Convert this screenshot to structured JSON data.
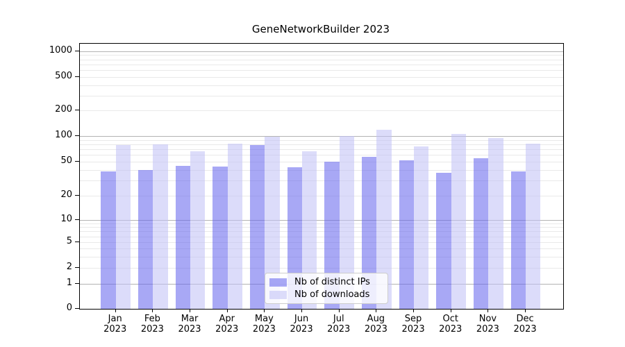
{
  "chart_data": {
    "type": "bar",
    "title": "GeneNetworkBuilder 2023",
    "year": "2023",
    "categories": [
      "Jan",
      "Feb",
      "Mar",
      "Apr",
      "May",
      "Jun",
      "Jul",
      "Aug",
      "Sep",
      "Oct",
      "Nov",
      "Dec"
    ],
    "series": [
      {
        "name": "Nb of distinct IPs",
        "color": "rgba(97,97,237,0.55)",
        "solid_color": "#a8a8f5",
        "values": [
          39,
          40,
          45,
          44,
          79,
          43,
          50,
          57,
          52,
          37,
          55,
          39
        ]
      },
      {
        "name": "Nb of downloads",
        "color": "rgba(191,191,246,0.55)",
        "solid_color": "#dcdcfb",
        "values": [
          78,
          80,
          67,
          82,
          98,
          66,
          100,
          119,
          76,
          105,
          95,
          82
        ]
      }
    ],
    "yscale": "symlog",
    "ylim": [
      0,
      1250
    ],
    "yticks": [
      0,
      1,
      2,
      5,
      10,
      20,
      50,
      100,
      200,
      500,
      1000
    ],
    "grid": true,
    "major_grid_color": "#b3b3b3",
    "minor_grid_color": "#e9e9e9",
    "legend_position": "lower center",
    "legend_border_color": "#cccccc"
  }
}
